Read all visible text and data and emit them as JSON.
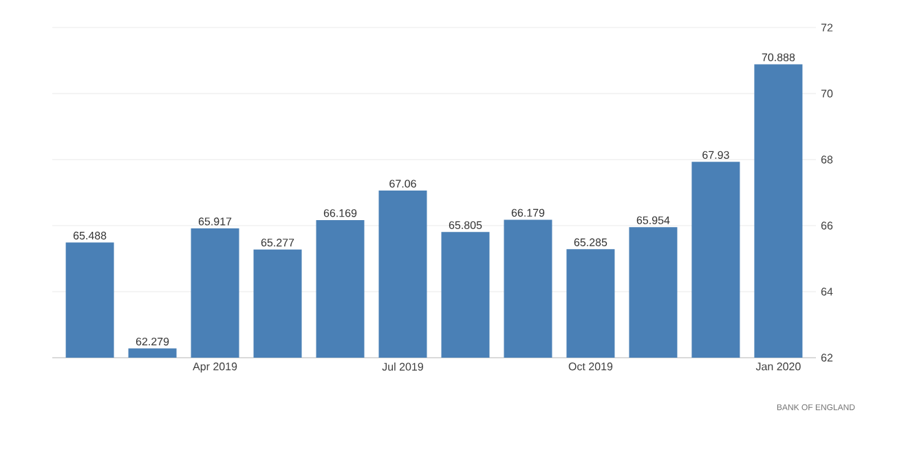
{
  "chart_data": {
    "type": "bar",
    "categories": [
      null,
      null,
      "Apr 2019",
      null,
      null,
      "Jul 2019",
      null,
      null,
      "Oct 2019",
      null,
      null,
      "Jan 2020"
    ],
    "values": [
      65.488,
      62.279,
      65.917,
      65.277,
      66.169,
      67.06,
      65.805,
      66.179,
      65.285,
      65.954,
      67.93,
      70.888
    ],
    "color": "#4a80b6",
    "ylim": [
      62,
      72
    ],
    "yticks": [
      62,
      64,
      66,
      68,
      70,
      72
    ],
    "grid": "y",
    "data_labels": true,
    "annotations": [
      "BANK OF ENGLAND"
    ]
  }
}
